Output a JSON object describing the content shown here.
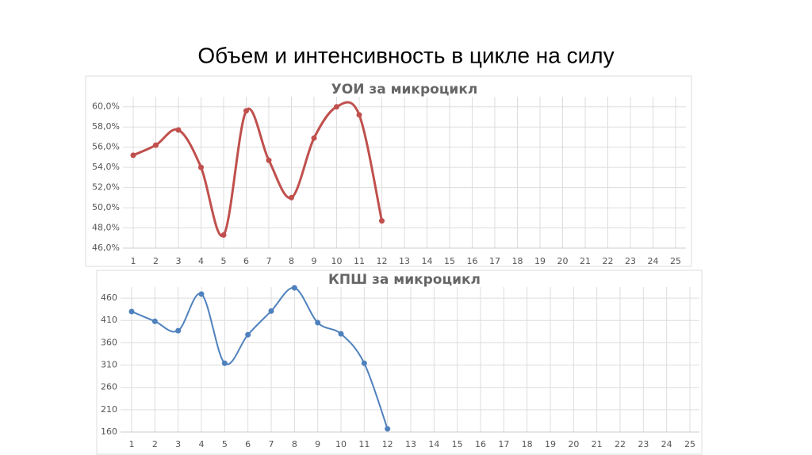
{
  "title": "Объем и интенсивность в цикле на силу",
  "chart_data": [
    {
      "type": "line",
      "title": "УОИ за микроцикл",
      "categories": [
        "1",
        "2",
        "3",
        "4",
        "5",
        "6",
        "7",
        "8",
        "9",
        "10",
        "11",
        "12",
        "13",
        "14",
        "15",
        "16",
        "17",
        "18",
        "19",
        "20",
        "21",
        "22",
        "23",
        "24",
        "25"
      ],
      "series": [
        {
          "color": "#c0504d",
          "values": [
            55.2,
            56.2,
            57.7,
            54.0,
            47.3,
            59.6,
            54.7,
            51.0,
            56.9,
            60.0,
            59.2,
            48.7,
            null,
            null,
            null,
            null,
            null,
            null,
            null,
            null,
            null,
            null,
            null,
            null,
            null
          ]
        }
      ],
      "ylim": [
        46,
        61
      ],
      "yticks": [
        {
          "value": 46,
          "label": "46,0%"
        },
        {
          "value": 48,
          "label": "48,0%"
        },
        {
          "value": 50,
          "label": "50,0%"
        },
        {
          "value": 52,
          "label": "52,0%"
        },
        {
          "value": 54,
          "label": "54,0%"
        },
        {
          "value": 56,
          "label": "56,0%"
        },
        {
          "value": 58,
          "label": "58,0%"
        },
        {
          "value": 60,
          "label": "60,0%"
        }
      ],
      "grid": true
    },
    {
      "type": "line",
      "title": "КПШ за микроцикл",
      "categories": [
        "1",
        "2",
        "3",
        "4",
        "5",
        "6",
        "7",
        "8",
        "9",
        "10",
        "11",
        "12",
        "13",
        "14",
        "15",
        "16",
        "17",
        "18",
        "19",
        "20",
        "21",
        "22",
        "23",
        "24",
        "25"
      ],
      "series": [
        {
          "color": "#4f81bd",
          "values": [
            430,
            408,
            387,
            469,
            314,
            378,
            431,
            483,
            405,
            380,
            314,
            167,
            null,
            null,
            null,
            null,
            null,
            null,
            null,
            null,
            null,
            null,
            null,
            null,
            null
          ]
        }
      ],
      "ylim": [
        160,
        485
      ],
      "yticks": [
        160,
        210,
        260,
        310,
        360,
        410,
        460
      ],
      "grid": true
    }
  ]
}
